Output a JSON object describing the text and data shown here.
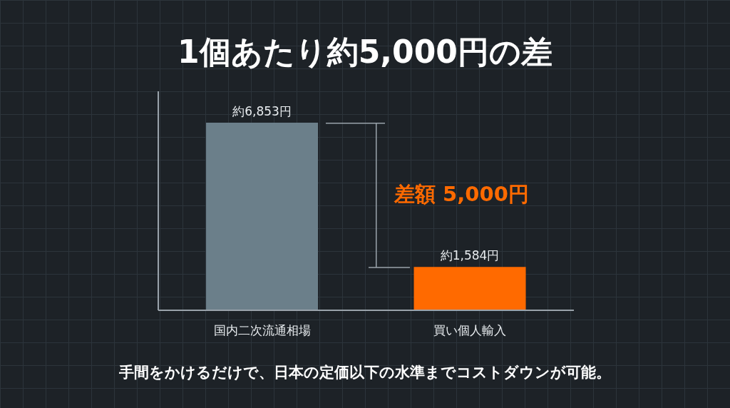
{
  "chart_data": {
    "type": "bar",
    "title": "1個あたり約5,000円の差",
    "categories": [
      "国内二次流通相場",
      "買い個人輸入"
    ],
    "values": [
      6853,
      1584
    ],
    "value_labels": [
      "約6,853円",
      "約1,584円"
    ],
    "colors": [
      "#6b7f8a",
      "#ff6a00"
    ],
    "ylim": [
      0,
      8000
    ],
    "tick_labels": "x",
    "annotations": [
      "差額 5,000円",
      "手間をかけるだけで、日本の定価以下の水準までコストダウンが可能。"
    ]
  }
}
